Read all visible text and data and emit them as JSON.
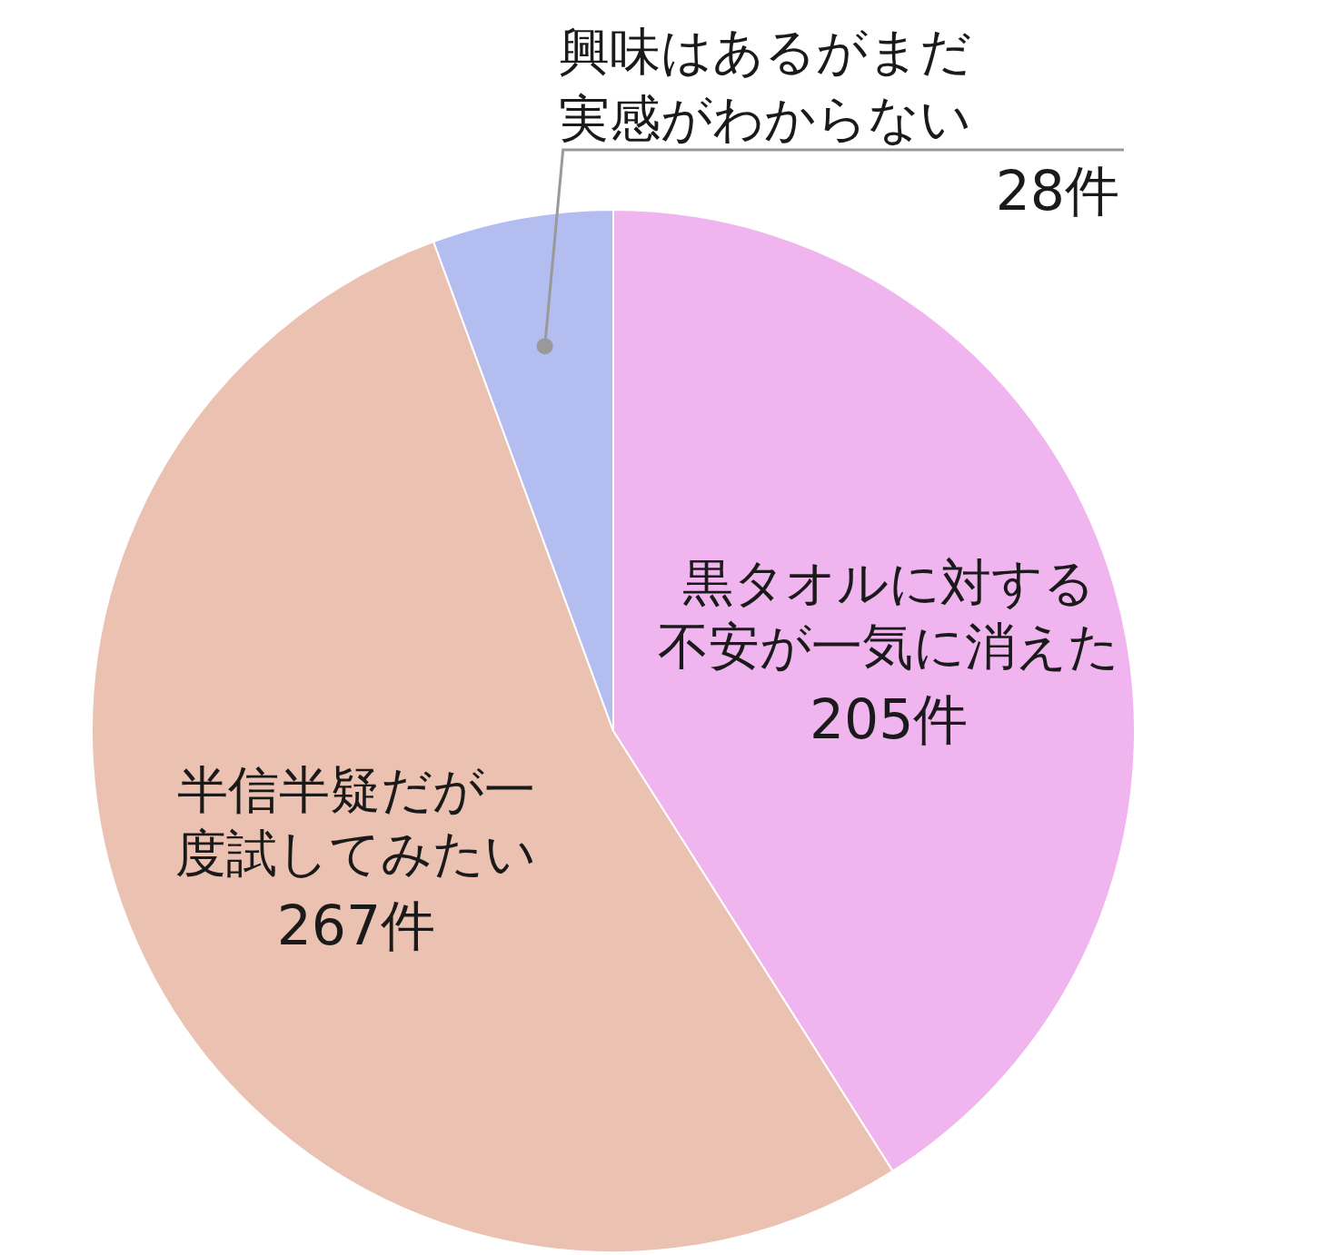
{
  "chart_data": {
    "type": "pie",
    "categories": [
      "黒タオルに対する不安が一気に消えた",
      "半信半疑だが一度試してみたい",
      "興味はあるがまだ実感がわからない"
    ],
    "values": [
      205,
      267,
      28
    ],
    "value_labels": [
      "205件",
      "267件",
      "28件"
    ],
    "colors": [
      "#f0b5ef",
      "#ebc2b2",
      "#b4bdf0"
    ],
    "legend": false
  }
}
